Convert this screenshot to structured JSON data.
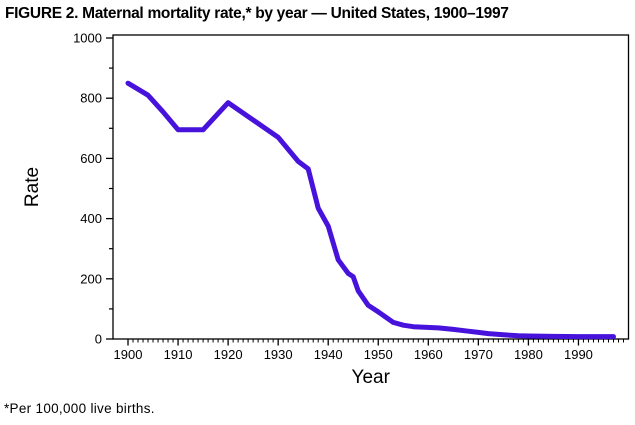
{
  "title": "FIGURE 2. Maternal mortality rate,* by year — United States, 1900–1997",
  "footnote": "*Per 100,000 live births.",
  "chart_data": {
    "type": "line",
    "title": "FIGURE 2. Maternal mortality rate, by year — United States, 1900–1997",
    "xlabel": "Year",
    "ylabel": "Rate",
    "x_axis_range": [
      1897,
      2000
    ],
    "x_ticks_major": [
      1900,
      1910,
      1920,
      1930,
      1940,
      1950,
      1960,
      1970,
      1980,
      1990
    ],
    "x_minor_tick_step": 1,
    "ylim": [
      0,
      1010
    ],
    "y_ticks_major": [
      0,
      200,
      400,
      600,
      800,
      1000
    ],
    "y_ticks_minor": [
      100,
      300,
      500,
      700,
      900
    ],
    "grid": false,
    "legend": "none",
    "line_color": "#4713DC",
    "line_width": 5,
    "series": [
      {
        "name": "Maternal mortality rate per 100,000 live births",
        "points": [
          [
            1900,
            850
          ],
          [
            1904,
            810
          ],
          [
            1907,
            755
          ],
          [
            1910,
            695
          ],
          [
            1915,
            695
          ],
          [
            1920,
            785
          ],
          [
            1930,
            670
          ],
          [
            1934,
            590
          ],
          [
            1936,
            565
          ],
          [
            1938,
            435
          ],
          [
            1940,
            375
          ],
          [
            1942,
            263
          ],
          [
            1944,
            218
          ],
          [
            1945,
            207
          ],
          [
            1946,
            160
          ],
          [
            1948,
            112
          ],
          [
            1950,
            90
          ],
          [
            1953,
            55
          ],
          [
            1955,
            46
          ],
          [
            1957,
            41
          ],
          [
            1962,
            37
          ],
          [
            1965,
            32
          ],
          [
            1968,
            26
          ],
          [
            1970,
            22
          ],
          [
            1972,
            18
          ],
          [
            1975,
            14
          ],
          [
            1978,
            11
          ],
          [
            1980,
            10
          ],
          [
            1985,
            8.5
          ],
          [
            1990,
            8
          ],
          [
            1994,
            8
          ],
          [
            1997,
            8
          ]
        ]
      }
    ]
  }
}
